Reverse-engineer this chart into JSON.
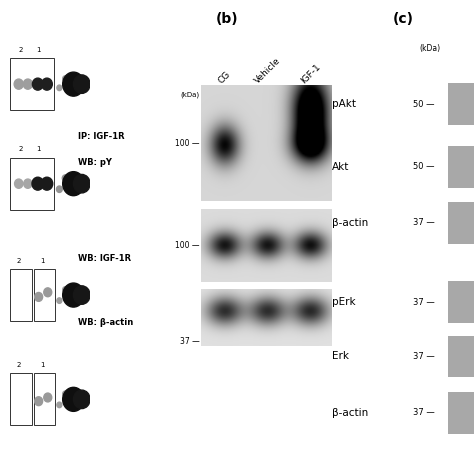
{
  "bg_color": "#c0c0c0",
  "panel_b_label": "(b)",
  "panel_c_label": "(c)",
  "col_labels": [
    "CG",
    "Vehicle",
    "IGF-1"
  ],
  "wb_labels_b": [
    "IP: IGF-1R\nWB: pY",
    "WB: IGF-1R",
    "WB: β-actin"
  ],
  "kda_markers_b": [
    "100",
    "100",
    "37"
  ],
  "wb_labels_c_top": [
    "pAkt",
    "Akt",
    "β-actin"
  ],
  "kda_c_top": [
    "50",
    "50",
    "37"
  ],
  "wb_labels_c_bot": [
    "pErk",
    "Erk",
    "β-actin"
  ],
  "kda_c_bot": [
    "37",
    "37",
    "37"
  ],
  "dot_panel_bg": "#b8b8b8",
  "wb_bg_dark": "#c8c8c8",
  "wb_bg_light": "#d5d5d5"
}
